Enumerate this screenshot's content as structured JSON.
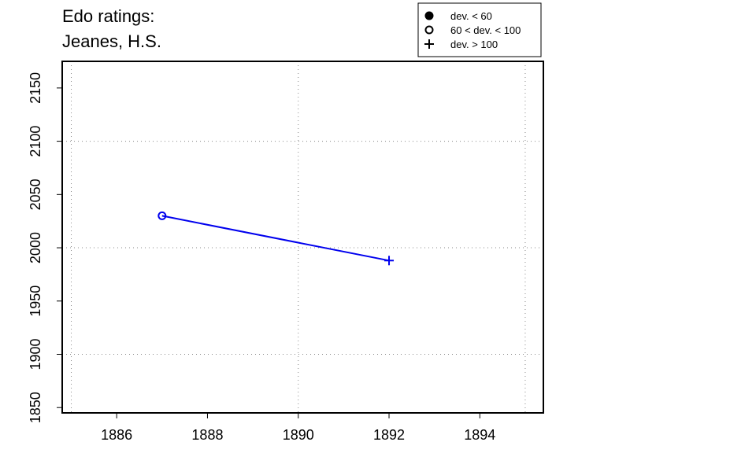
{
  "chart_data": {
    "type": "line",
    "title_lines": [
      "Edo ratings:",
      "Jeanes, H.S."
    ],
    "xlabel": "",
    "ylabel": "",
    "xlim": [
      1884.8,
      1895.4
    ],
    "ylim": [
      1845,
      2175
    ],
    "x_ticks": [
      1886,
      1888,
      1890,
      1892,
      1894
    ],
    "y_ticks": [
      1850,
      1900,
      1950,
      2000,
      2050,
      2100,
      2150
    ],
    "x_grid": [
      1885,
      1890,
      1895
    ],
    "y_grid": [
      1900,
      2000,
      2100
    ],
    "grid": true,
    "legend_position": "top-right, above plot",
    "legend": [
      {
        "symbol": "filled-circle",
        "label": "dev. < 60"
      },
      {
        "symbol": "open-circle",
        "label": "60 < dev. < 100"
      },
      {
        "symbol": "plus",
        "label": "dev. > 100"
      }
    ],
    "series": [
      {
        "color": "#0000ee",
        "points": [
          {
            "x": 1887,
            "y": 2030,
            "symbol": "open-circle"
          },
          {
            "x": 1892,
            "y": 1988,
            "symbol": "plus"
          }
        ]
      }
    ]
  }
}
